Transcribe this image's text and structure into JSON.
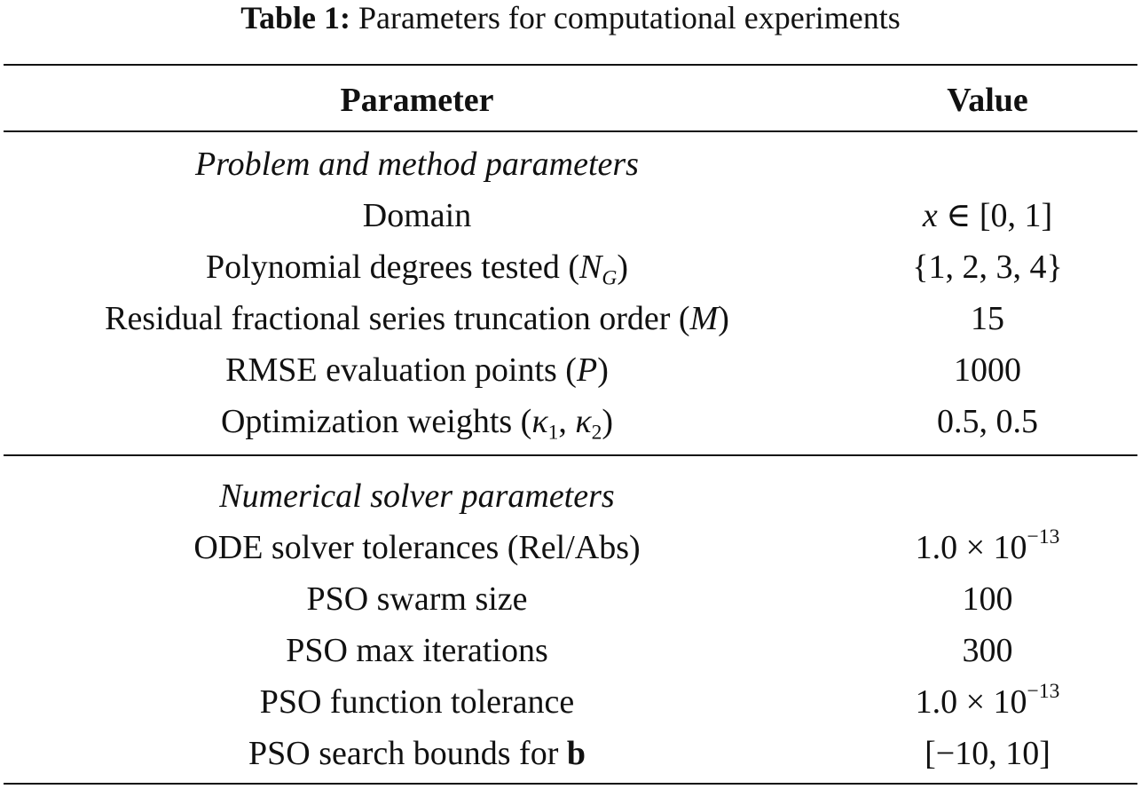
{
  "caption": {
    "label": "Table 1:",
    "text": "Parameters for computational experiments"
  },
  "header": {
    "parameter": "Parameter",
    "value": "Value"
  },
  "sections": [
    {
      "title": "Problem and method parameters",
      "rows": [
        {
          "param": "Domain",
          "value": "x ∈ [0, 1]"
        },
        {
          "param": "Polynomial degrees tested (N_G)",
          "value": "{1, 2, 3, 4}"
        },
        {
          "param": "Residual fractional series truncation order (M)",
          "value": "15"
        },
        {
          "param": "RMSE evaluation points (P)",
          "value": "1000"
        },
        {
          "param": "Optimization weights (κ_1, κ_2)",
          "value": "0.5, 0.5"
        }
      ]
    },
    {
      "title": "Numerical solver parameters",
      "rows": [
        {
          "param": "ODE solver tolerances (Rel/Abs)",
          "value": "1.0 × 10^−13"
        },
        {
          "param": "PSO swarm size",
          "value": "100"
        },
        {
          "param": "PSO max iterations",
          "value": "300"
        },
        {
          "param": "PSO function tolerance",
          "value": "1.0 × 10^−13"
        },
        {
          "param": "PSO search bounds for b",
          "value": "[−10, 10]"
        }
      ]
    }
  ],
  "parts": {
    "domain_var": "x",
    "domain_rest": " ∈ [0, 1]",
    "poly_text": "Polynomial degrees tested (",
    "poly_sym": "N",
    "poly_sub": "G",
    "poly_close": ")",
    "resid_text": "Residual fractional series truncation order (",
    "resid_sym": "M",
    "resid_close": ")",
    "rmse_text": "RMSE evaluation points (",
    "rmse_sym": "P",
    "rmse_close": ")",
    "opt_text": "Optimization weights (",
    "opt_k1": "κ",
    "opt_k1_sub": "1",
    "opt_comma": ", ",
    "opt_k2": "κ",
    "opt_k2_sub": "2",
    "opt_close": ")",
    "tol_base": "1.0 × 10",
    "tol_exp": "−13",
    "bounds_text": "PSO search bounds for ",
    "bounds_bold": "b"
  }
}
